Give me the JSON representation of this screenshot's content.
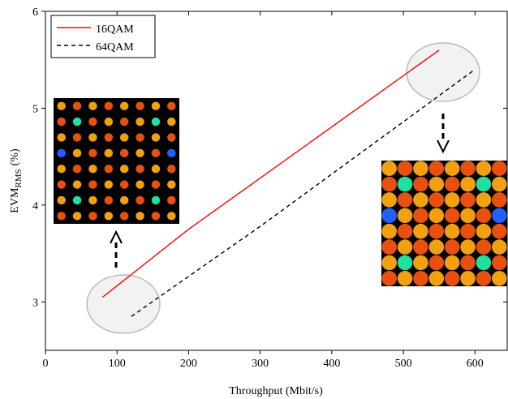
{
  "chart_data": {
    "type": "line",
    "x_label": "Throughput (Mbit/s)",
    "y_label": {
      "main": "EVM",
      "subscript": "RMS",
      "unit": "(%)"
    },
    "xlim": [
      0,
      645
    ],
    "xticks": [
      0,
      100,
      200,
      300,
      400,
      500,
      600
    ],
    "ylim": [
      2.5,
      6
    ],
    "yticks": [
      3,
      4,
      5,
      6
    ],
    "legend": "upper left",
    "series": [
      {
        "name": "16QAM",
        "color": "#ff0000",
        "dash": "solid",
        "x": [
          80,
          200,
          550
        ],
        "values": [
          3.05,
          3.75,
          5.6
        ]
      },
      {
        "name": "64QAM",
        "color": "#000000",
        "dash": "dashed",
        "x": [
          120,
          300,
          600
        ],
        "values": [
          2.85,
          3.78,
          5.4
        ]
      }
    ]
  }
}
